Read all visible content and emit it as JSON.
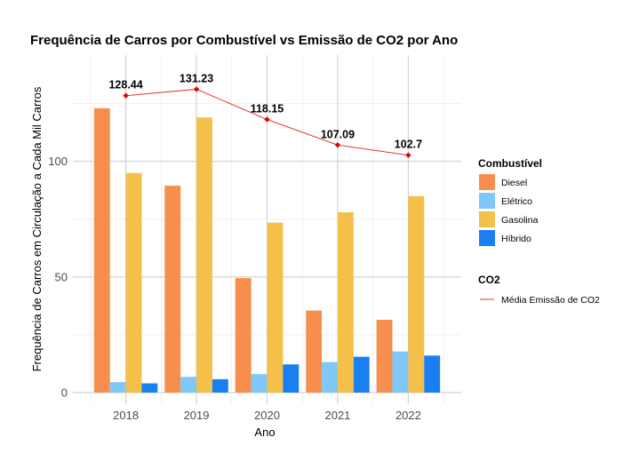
{
  "chart_data": {
    "type": "bar",
    "title": "Frequência de Carros por Combustível vs Emissão de CO2 por Ano",
    "xlabel": "Ano",
    "ylabel": "Frequência de Carros em Circulação a Cada Mil Carros",
    "categories": [
      "2018",
      "2019",
      "2020",
      "2021",
      "2022"
    ],
    "ylim": [
      -5,
      146
    ],
    "yticks": [
      0,
      50,
      100
    ],
    "grid": true,
    "legend_position": "right",
    "series": [
      {
        "name": "Diesel",
        "color": "#F68F4E",
        "values": [
          123,
          89.5,
          49.5,
          35.5,
          31.5
        ]
      },
      {
        "name": "Elétrico",
        "color": "#80C8F7",
        "values": [
          4.5,
          6.8,
          8.0,
          13.2,
          17.8
        ]
      },
      {
        "name": "Gasolina",
        "color": "#F5C04A",
        "values": [
          95.0,
          119.0,
          73.5,
          78.0,
          85.0
        ]
      },
      {
        "name": "Híbrido",
        "color": "#1A7FF0",
        "values": [
          4.0,
          5.8,
          12.2,
          15.5,
          16.0
        ]
      }
    ],
    "line_series": {
      "name": "Média Emissão de CO2",
      "color": "#E8343A",
      "values": [
        128.44,
        131.23,
        118.15,
        107.09,
        102.7
      ],
      "labels": [
        "128.44",
        "131.23",
        "118.15",
        "107.09",
        "102.7"
      ]
    },
    "legend": {
      "fuel_title": "Combustível",
      "co2_title": "CO2"
    }
  }
}
